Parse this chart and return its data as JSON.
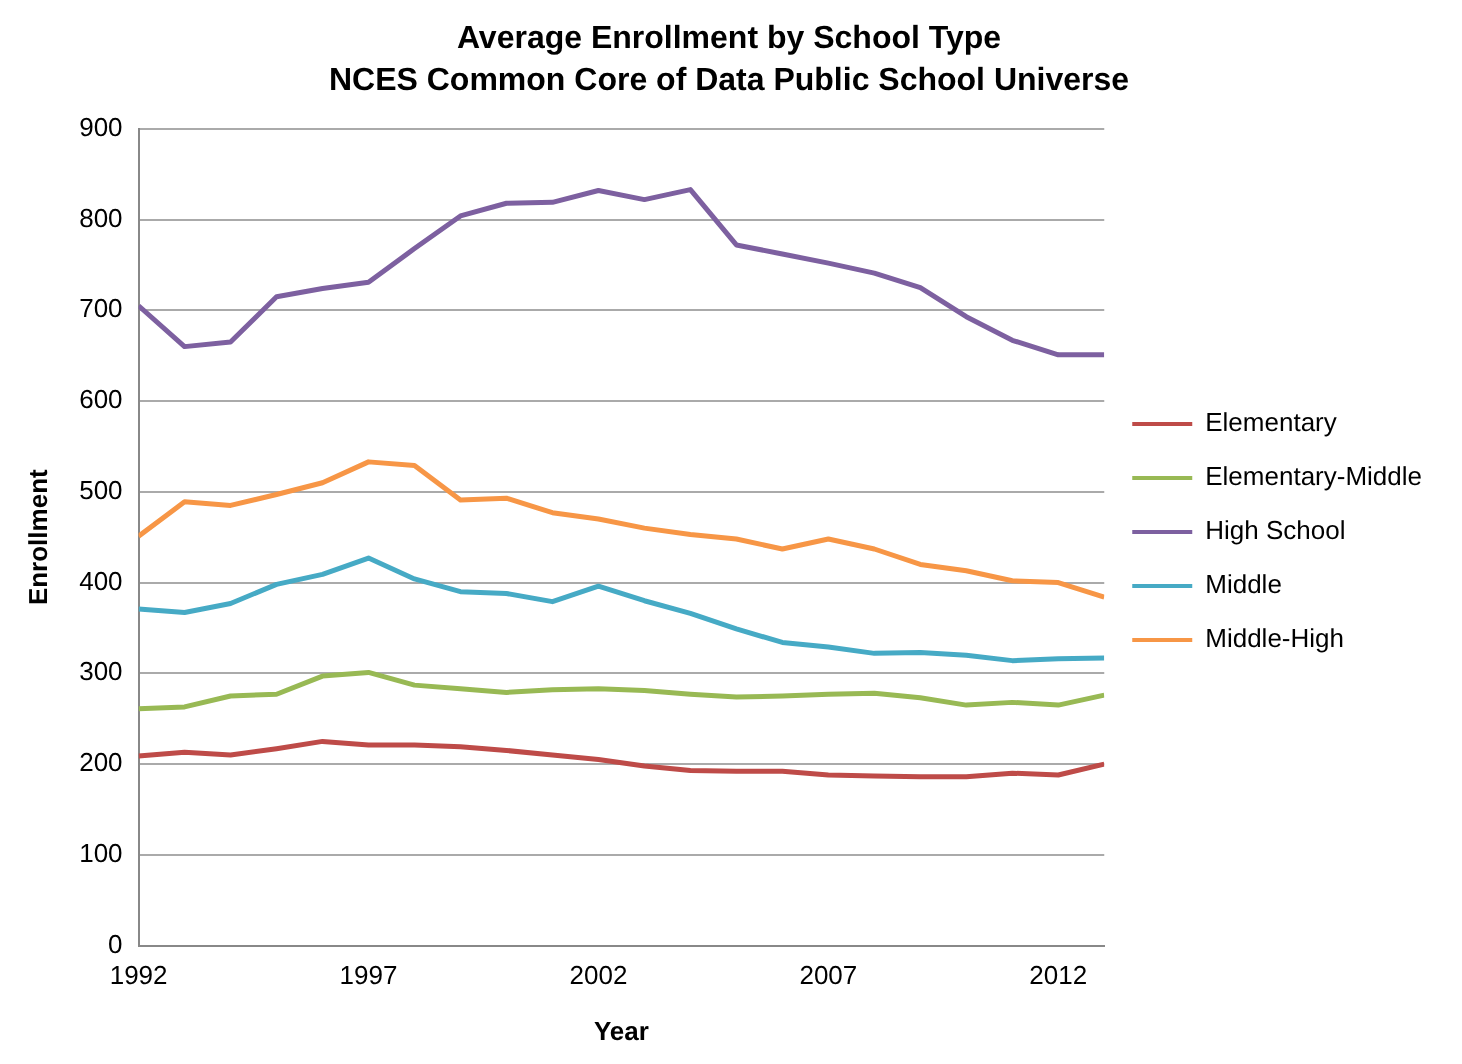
{
  "chart_data": {
    "type": "line",
    "title": "Average Enrollment by School Type",
    "subtitle": "NCES Common Core of Data Public School Universe",
    "xlabel": "Year",
    "ylabel": "Enrollment",
    "x": [
      1992,
      1993,
      1994,
      1995,
      1996,
      1997,
      1998,
      1999,
      2000,
      2001,
      2002,
      2003,
      2004,
      2005,
      2006,
      2007,
      2008,
      2009,
      2010,
      2011,
      2012,
      2013
    ],
    "xlim": [
      1992,
      2013
    ],
    "xticks": [
      1992,
      1997,
      2002,
      2007,
      2012
    ],
    "ylim": [
      0,
      900
    ],
    "yticks": [
      0,
      100,
      200,
      300,
      400,
      500,
      600,
      700,
      800,
      900
    ],
    "grid": "y",
    "legend": "right",
    "marker": "none",
    "series": [
      {
        "name": "Elementary",
        "color": "#be4b48",
        "values": [
          209,
          213,
          210,
          217,
          225,
          221,
          221,
          219,
          215,
          210,
          205,
          198,
          193,
          192,
          192,
          188,
          187,
          186,
          186,
          190,
          188,
          200
        ]
      },
      {
        "name": "Elementary-Middle",
        "color": "#98b954",
        "values": [
          261,
          263,
          275,
          277,
          297,
          301,
          287,
          283,
          279,
          282,
          283,
          281,
          277,
          274,
          275,
          277,
          278,
          273,
          265,
          268,
          265,
          276
        ]
      },
      {
        "name": "High School",
        "color": "#7d60a0",
        "values": [
          705,
          660,
          665,
          715,
          724,
          731,
          768,
          804,
          818,
          819,
          832,
          822,
          833,
          772,
          762,
          752,
          741,
          725,
          693,
          667,
          651,
          651
        ]
      },
      {
        "name": "Middle",
        "color": "#46aac5",
        "values": [
          371,
          367,
          377,
          398,
          409,
          427,
          404,
          390,
          388,
          379,
          396,
          380,
          366,
          349,
          334,
          329,
          322,
          323,
          320,
          314,
          316,
          317
        ]
      },
      {
        "name": "Middle-High",
        "color": "#f79646",
        "values": [
          451,
          489,
          485,
          497,
          510,
          533,
          529,
          491,
          493,
          477,
          470,
          460,
          453,
          448,
          437,
          448,
          437,
          420,
          413,
          402,
          400,
          384
        ]
      }
    ]
  }
}
